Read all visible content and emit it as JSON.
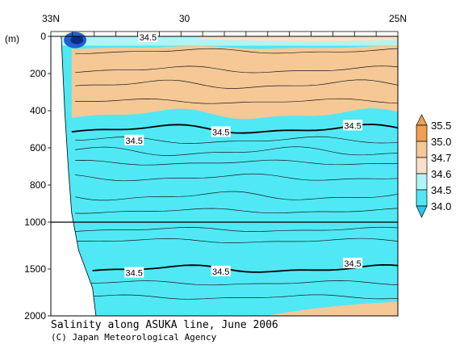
{
  "title": "Salinity along ASUKA line, June 2006",
  "credit": "(C) Japan Meteorological Agency",
  "chart_data": {
    "type": "heatmap",
    "y_unit": "(m)",
    "x_ticks": [
      "33N",
      "30",
      "25N"
    ],
    "y_ticks": [
      "0",
      "200",
      "400",
      "600",
      "800",
      "1000",
      "1500",
      "2000"
    ],
    "color_levels": [
      "35.5",
      "35.0",
      "34.7",
      "34.6",
      "34.5",
      "34.0"
    ],
    "colors": {
      "high": "#F0A050",
      "tan": "#F5C896",
      "peach": "#FAE0C8",
      "light_cyan": "#B0F5F5",
      "cyan": "#50E8F5",
      "deep_cyan": "#28C8F0",
      "low": "#2060D0"
    },
    "contour_labels": [
      {
        "value": "34.5",
        "xn": 0.28,
        "yd": 5
      },
      {
        "value": "34.5",
        "xn": 0.49,
        "yd": 515
      },
      {
        "value": "34.5",
        "xn": 0.87,
        "yd": 480
      },
      {
        "value": "34.5",
        "xn": 0.24,
        "yd": 560
      },
      {
        "value": "34.5",
        "xn": 0.24,
        "yd": 1540
      },
      {
        "value": "34.5",
        "xn": 0.49,
        "yd": 1525
      },
      {
        "value": "34.5",
        "xn": 0.87,
        "yd": 1440
      }
    ]
  }
}
